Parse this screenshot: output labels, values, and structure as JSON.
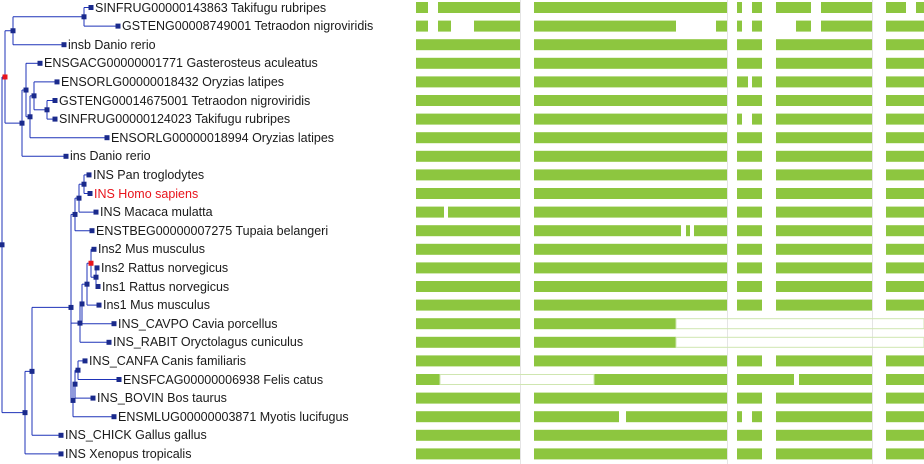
{
  "colors": {
    "branch": "#1f33b8",
    "node": "#1a2a8c",
    "node_dup": "#e8141c",
    "bar": "#8dc63f",
    "gap": "#ffffff",
    "guide": "#e4e4e4",
    "highlight_text": "#e8141c"
  },
  "leaves": [
    {
      "label": "SINFRUG00000143863 Takifugu rubripes",
      "highlight": false
    },
    {
      "label": "GSTENG00008749001 Tetraodon nigroviridis",
      "highlight": false
    },
    {
      "label": "insb Danio rerio",
      "highlight": false
    },
    {
      "label": "ENSGACG00000001771 Gasterosteus aculeatus",
      "highlight": false
    },
    {
      "label": "ENSORLG00000018432 Oryzias latipes",
      "highlight": false
    },
    {
      "label": "GSTENG00014675001 Tetraodon nigroviridis",
      "highlight": false
    },
    {
      "label": "SINFRUG00000124023 Takifugu rubripes",
      "highlight": false
    },
    {
      "label": "ENSORLG00000018994 Oryzias latipes",
      "highlight": false
    },
    {
      "label": "ins Danio rerio",
      "highlight": false
    },
    {
      "label": "INS Pan troglodytes",
      "highlight": false
    },
    {
      "label": "INS Homo sapiens",
      "highlight": true
    },
    {
      "label": "INS Macaca mulatta",
      "highlight": false
    },
    {
      "label": "ENSTBEG00000007275 Tupaia belangeri",
      "highlight": false
    },
    {
      "label": "Ins2 Mus musculus",
      "highlight": false
    },
    {
      "label": "Ins2 Rattus norvegicus",
      "highlight": false
    },
    {
      "label": "Ins1 Rattus norvegicus",
      "highlight": false
    },
    {
      "label": "Ins1 Mus musculus",
      "highlight": false
    },
    {
      "label": "INS_CAVPO Cavia porcellus",
      "highlight": false
    },
    {
      "label": "INS_RABIT Oryctolagus cuniculus",
      "highlight": false
    },
    {
      "label": "INS_CANFA Canis familiaris",
      "highlight": false
    },
    {
      "label": "ENSFCAG00000006938 Felis catus",
      "highlight": false
    },
    {
      "label": "INS_BOVIN Bos taurus",
      "highlight": false
    },
    {
      "label": "ENSMLUG00000003871 Myotis lucifugus",
      "highlight": false
    },
    {
      "label": "INS_CHICK Gallus gallus",
      "highlight": false
    },
    {
      "label": "INS Xenopus tropicalis",
      "highlight": false
    }
  ]
}
